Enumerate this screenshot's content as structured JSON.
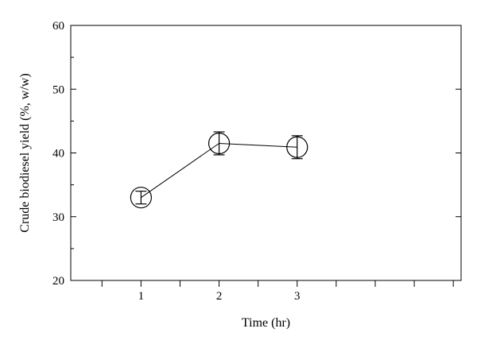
{
  "chart_data": {
    "type": "line",
    "title": "",
    "xlabel": "Time (hr)",
    "ylabel": "Crude biodiesel yield (%, w/w)",
    "x": [
      1,
      2,
      3
    ],
    "xticks": [
      "1",
      "2",
      "3"
    ],
    "xlim": [
      0.1,
      5.1
    ],
    "yticks": [
      "20",
      "30",
      "40",
      "50",
      "60"
    ],
    "ylim": [
      20,
      60
    ],
    "grid": false,
    "legend": "none",
    "series": [
      {
        "values": [
          33.0,
          41.5,
          40.9
        ],
        "errors": [
          1.0,
          1.8,
          1.8
        ],
        "marker": "open-circle",
        "color": "#000000"
      }
    ]
  }
}
